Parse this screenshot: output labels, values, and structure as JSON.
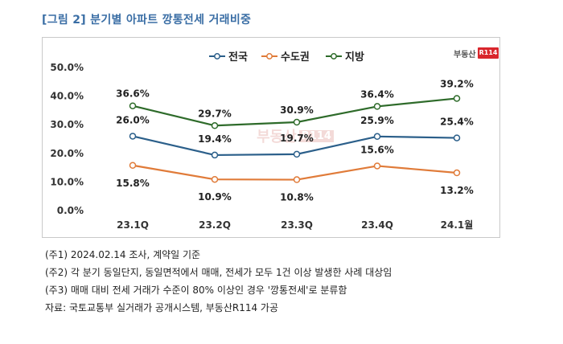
{
  "header": {
    "title": "[그림 2] 분기별 아파트 깡통전세 거래비중"
  },
  "logo": {
    "text": "부동산",
    "badge": "R114"
  },
  "watermark": {
    "text": "부동산",
    "badge": "R114"
  },
  "colors": {
    "national": "#2b5f8a",
    "capital": "#e07b39",
    "regional": "#2e6b2a",
    "frame": "#c9c9c9",
    "title": "#3a6ea5"
  },
  "chart_data": {
    "type": "line",
    "categories": [
      "23.1Q",
      "23.2Q",
      "23.3Q",
      "23.4Q",
      "24.1월"
    ],
    "y_tick_labels": [
      "50.0%",
      "40.0%",
      "30.0%",
      "20.0%",
      "10.0%",
      "0.0%"
    ],
    "ylim": [
      0,
      50
    ],
    "grid": false,
    "legend_position": "top-center",
    "series": [
      {
        "name": "전국",
        "color": "#2b5f8a",
        "values": [
          26.0,
          19.4,
          19.7,
          25.9,
          25.4
        ],
        "labels": [
          "26.0%",
          "19.4%",
          "19.7%",
          "25.9%",
          "25.4%"
        ]
      },
      {
        "name": "수도권",
        "color": "#e07b39",
        "values": [
          15.8,
          10.9,
          10.8,
          15.6,
          13.2
        ],
        "labels": [
          "15.8%",
          "10.9%",
          "10.8%",
          "15.6%",
          "13.2%"
        ]
      },
      {
        "name": "지방",
        "color": "#2e6b2a",
        "values": [
          36.6,
          29.7,
          30.9,
          36.4,
          39.2
        ],
        "labels": [
          "36.6%",
          "29.7%",
          "30.9%",
          "36.4%",
          "39.2%"
        ]
      }
    ]
  },
  "notes": [
    "(주1) 2024.02.14 조사, 계약일 기준",
    "(주2) 각 분기 동일단지, 동일면적에서 매매, 전세가 모두 1건 이상 발생한 사례 대상임",
    "(주3) 매매 대비 전세 거래가 수준이 80% 이상인 경우 '깡통전세'로 분류함",
    "자료: 국토교통부 실거래가 공개시스템, 부동산R114 가공"
  ]
}
